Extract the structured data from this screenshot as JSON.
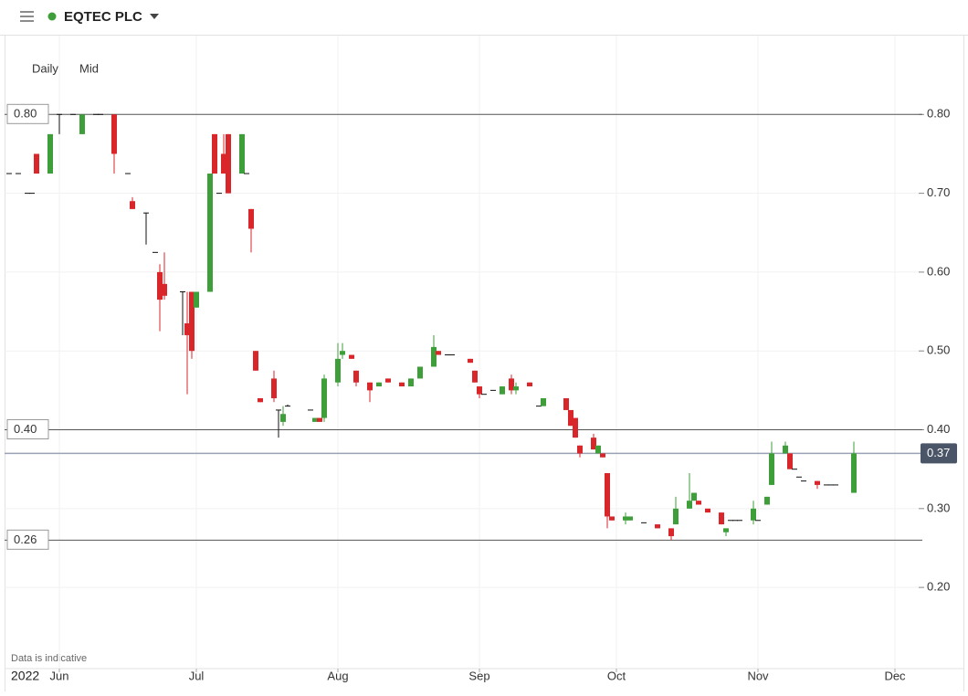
{
  "header": {
    "instrument": "EQTEC PLC"
  },
  "chart_data": {
    "type": "candlestick",
    "interval": "Daily",
    "price_basis": "Mid",
    "note": "Data is indicative",
    "year_label": "2022",
    "xlim": [
      140,
      341
    ],
    "xticks": [
      {
        "value": 152,
        "label": "Jun"
      },
      {
        "value": 182,
        "label": "Jul"
      },
      {
        "value": 213,
        "label": "Aug"
      },
      {
        "value": 244,
        "label": "Sep"
      },
      {
        "value": 274,
        "label": "Oct"
      },
      {
        "value": 305,
        "label": "Nov"
      },
      {
        "value": 335,
        "label": "Dec"
      }
    ],
    "ylim": [
      0.075,
      0.9
    ],
    "yticks": [
      {
        "value": 0.8,
        "label": "0.80"
      },
      {
        "value": 0.7,
        "label": "0.70"
      },
      {
        "value": 0.6,
        "label": "0.60"
      },
      {
        "value": 0.5,
        "label": "0.50"
      },
      {
        "value": 0.4,
        "label": "0.40"
      },
      {
        "value": 0.3,
        "label": "0.30"
      },
      {
        "value": 0.2,
        "label": "0.20"
      }
    ],
    "grid": true,
    "up_color": "#3e9e3a",
    "down_color": "#d9262b",
    "flat_color": "#111111",
    "price_lines": [
      {
        "value": 0.8,
        "label": "0.80"
      },
      {
        "value": 0.4,
        "label": "0.40"
      },
      {
        "value": 0.26,
        "label": "0.26"
      }
    ],
    "last_price": {
      "value": 0.37,
      "label": "0.37"
    },
    "x": [
      141,
      143,
      145,
      146,
      147,
      150,
      152,
      155,
      157,
      160,
      161,
      164,
      167,
      168,
      171,
      173,
      174,
      175,
      179,
      180,
      181,
      182,
      185,
      186,
      187,
      188,
      189,
      192,
      193,
      194,
      195,
      196,
      199,
      200,
      201,
      202,
      207,
      208,
      209,
      210,
      213,
      214,
      216,
      217,
      220,
      222,
      224,
      227,
      229,
      231,
      234,
      235,
      237,
      238,
      242,
      243,
      244,
      245,
      247,
      249,
      251,
      252,
      255,
      257,
      258,
      263,
      264,
      265,
      266,
      269,
      270,
      271,
      272,
      273,
      276,
      277,
      280,
      283,
      286,
      287,
      290,
      291,
      292,
      294,
      297,
      298,
      299,
      300,
      301,
      304,
      305,
      307,
      308,
      311,
      312,
      313,
      314,
      315,
      318,
      320,
      321,
      322,
      326
    ],
    "open": [
      0.725,
      0.725,
      0.7,
      0.7,
      0.75,
      0.725,
      0.8,
      0.8,
      0.775,
      0.8,
      0.8,
      0.8,
      0.725,
      0.69,
      0.675,
      0.625,
      0.6,
      0.585,
      0.575,
      0.535,
      0.575,
      0.555,
      0.575,
      0.775,
      0.7,
      0.75,
      0.775,
      0.725,
      0.725,
      0.68,
      0.5,
      0.44,
      0.465,
      0.425,
      0.41,
      0.43,
      0.425,
      0.41,
      0.415,
      0.415,
      0.46,
      0.495,
      0.495,
      0.475,
      0.46,
      0.455,
      0.465,
      0.46,
      0.455,
      0.465,
      0.48,
      0.5,
      0.495,
      0.495,
      0.49,
      0.475,
      0.455,
      0.445,
      0.45,
      0.445,
      0.465,
      0.45,
      0.46,
      0.43,
      0.43,
      0.44,
      0.425,
      0.415,
      0.38,
      0.39,
      0.37,
      0.37,
      0.345,
      0.29,
      0.285,
      0.285,
      0.282,
      0.28,
      0.275,
      0.28,
      0.3,
      0.31,
      0.31,
      0.3,
      0.295,
      0.27,
      0.285,
      0.285,
      0.285,
      0.285,
      0.285,
      0.305,
      0.33,
      0.37,
      0.37,
      0.35,
      0.34,
      0.335,
      0.335,
      0.33,
      0.33,
      0.33,
      0.32
    ],
    "high": [
      0.725,
      0.725,
      0.7,
      0.7,
      0.75,
      0.775,
      0.8,
      0.8,
      0.8,
      0.8,
      0.8,
      0.8,
      0.725,
      0.695,
      0.675,
      0.625,
      0.61,
      0.625,
      0.575,
      0.575,
      0.575,
      0.575,
      0.725,
      0.775,
      0.7,
      0.775,
      0.775,
      0.775,
      0.725,
      0.68,
      0.5,
      0.44,
      0.475,
      0.425,
      0.43,
      0.432,
      0.425,
      0.415,
      0.415,
      0.47,
      0.51,
      0.51,
      0.495,
      0.475,
      0.46,
      0.46,
      0.465,
      0.46,
      0.465,
      0.48,
      0.52,
      0.5,
      0.495,
      0.495,
      0.49,
      0.475,
      0.455,
      0.445,
      0.45,
      0.455,
      0.47,
      0.46,
      0.46,
      0.43,
      0.44,
      0.44,
      0.425,
      0.415,
      0.38,
      0.395,
      0.38,
      0.37,
      0.345,
      0.29,
      0.295,
      0.29,
      0.282,
      0.28,
      0.275,
      0.315,
      0.345,
      0.32,
      0.31,
      0.3,
      0.295,
      0.275,
      0.285,
      0.285,
      0.285,
      0.31,
      0.285,
      0.315,
      0.385,
      0.385,
      0.37,
      0.35,
      0.34,
      0.335,
      0.335,
      0.33,
      0.33,
      0.33,
      0.385
    ],
    "low": [
      0.725,
      0.725,
      0.7,
      0.7,
      0.725,
      0.725,
      0.775,
      0.8,
      0.775,
      0.8,
      0.8,
      0.725,
      0.725,
      0.68,
      0.635,
      0.625,
      0.525,
      0.565,
      0.52,
      0.445,
      0.49,
      0.555,
      0.575,
      0.725,
      0.7,
      0.725,
      0.7,
      0.725,
      0.725,
      0.625,
      0.475,
      0.435,
      0.435,
      0.39,
      0.405,
      0.43,
      0.425,
      0.41,
      0.41,
      0.41,
      0.455,
      0.49,
      0.49,
      0.455,
      0.435,
      0.455,
      0.46,
      0.455,
      0.455,
      0.465,
      0.48,
      0.495,
      0.495,
      0.495,
      0.485,
      0.46,
      0.44,
      0.445,
      0.45,
      0.445,
      0.445,
      0.445,
      0.455,
      0.43,
      0.43,
      0.425,
      0.405,
      0.39,
      0.365,
      0.375,
      0.37,
      0.365,
      0.275,
      0.285,
      0.28,
      0.285,
      0.282,
      0.275,
      0.26,
      0.28,
      0.3,
      0.31,
      0.305,
      0.295,
      0.28,
      0.265,
      0.285,
      0.285,
      0.285,
      0.28,
      0.285,
      0.305,
      0.33,
      0.37,
      0.35,
      0.35,
      0.34,
      0.335,
      0.325,
      0.33,
      0.33,
      0.33,
      0.32
    ],
    "close": [
      0.725,
      0.725,
      0.7,
      0.7,
      0.725,
      0.775,
      0.8,
      0.8,
      0.8,
      0.8,
      0.8,
      0.75,
      0.725,
      0.68,
      0.675,
      0.625,
      0.565,
      0.57,
      0.575,
      0.52,
      0.5,
      0.575,
      0.725,
      0.725,
      0.7,
      0.725,
      0.7,
      0.775,
      0.725,
      0.655,
      0.475,
      0.435,
      0.44,
      0.425,
      0.42,
      0.43,
      0.425,
      0.415,
      0.41,
      0.465,
      0.49,
      0.5,
      0.49,
      0.46,
      0.45,
      0.46,
      0.46,
      0.455,
      0.465,
      0.48,
      0.505,
      0.495,
      0.495,
      0.495,
      0.485,
      0.46,
      0.445,
      0.445,
      0.45,
      0.455,
      0.45,
      0.455,
      0.455,
      0.43,
      0.44,
      0.425,
      0.405,
      0.39,
      0.37,
      0.375,
      0.38,
      0.365,
      0.29,
      0.285,
      0.29,
      0.29,
      0.282,
      0.275,
      0.265,
      0.3,
      0.31,
      0.32,
      0.305,
      0.295,
      0.28,
      0.275,
      0.285,
      0.285,
      0.285,
      0.3,
      0.285,
      0.315,
      0.37,
      0.38,
      0.35,
      0.35,
      0.34,
      0.335,
      0.33,
      0.33,
      0.33,
      0.33,
      0.37
    ]
  }
}
